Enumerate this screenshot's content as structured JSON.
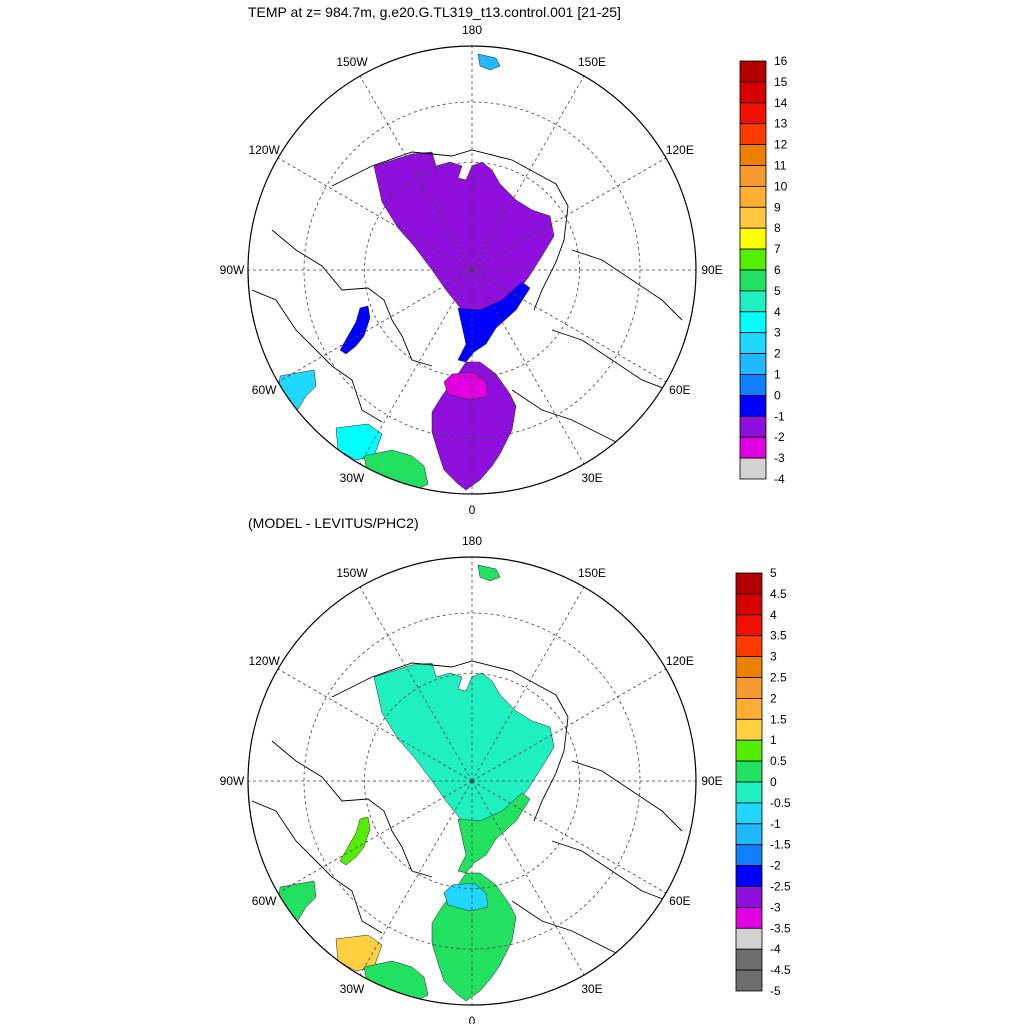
{
  "panels": [
    {
      "title": "TEMP at z= 984.7m, g.e20.G.TL319_t13.control.001 [21-25]",
      "longitude_labels": [
        "180",
        "150E",
        "120E",
        "90E",
        "60E",
        "30E",
        "0",
        "30W",
        "60W",
        "90W",
        "120W",
        "150W"
      ],
      "colorbar": {
        "labels": [
          "16",
          "15",
          "14",
          "13",
          "12",
          "11",
          "10",
          "9",
          "8",
          "7",
          "6",
          "5",
          "4",
          "3",
          "2",
          "1",
          "0",
          "-1",
          "-2",
          "-3",
          "-4"
        ],
        "colors": [
          "#b40000",
          "#d70000",
          "#f01000",
          "#ff3a00",
          "#ee8000",
          "#f59a30",
          "#ffae35",
          "#ffc640",
          "#ffff00",
          "#55ee00",
          "#22e060",
          "#20f0c0",
          "#00ffff",
          "#20d8ff",
          "#20b8ff",
          "#1080ff",
          "#0000ff",
          "#8f10dd",
          "#e000e0",
          "#d2d2d2",
          "#6e6e6e"
        ]
      },
      "fields": [
        {
          "name": "arctic-basin",
          "color": "#8f10dd"
        },
        {
          "name": "fram-strait",
          "color": "#0000ff"
        },
        {
          "name": "nordic-seas",
          "color": "#8f10dd"
        },
        {
          "name": "norwegian-core",
          "color": "#e000e0"
        },
        {
          "name": "baffin-bay",
          "color": "#0000ff"
        },
        {
          "name": "labrador-sea",
          "color": "#20d8ff"
        },
        {
          "name": "irminger-sea",
          "color": "#00ffff"
        },
        {
          "name": "north-atlantic",
          "color": "#22e060"
        },
        {
          "name": "bering-sea",
          "color": "#20b8ff"
        }
      ]
    },
    {
      "title": "(MODEL - LEVITUS/PHC2)",
      "longitude_labels": [
        "180",
        "150E",
        "120E",
        "90E",
        "60E",
        "30E",
        "0",
        "30W",
        "60W",
        "90W",
        "120W",
        "150W"
      ],
      "colorbar": {
        "labels": [
          "5",
          "4.5",
          "4",
          "3.5",
          "3",
          "2.5",
          "2",
          "1.5",
          "1",
          "0.5",
          "0",
          "-0.5",
          "-1",
          "-1.5",
          "-2",
          "-2.5",
          "-3",
          "-3.5",
          "-4",
          "-4.5",
          "-5"
        ],
        "colors": [
          "#b40000",
          "#d70000",
          "#f01000",
          "#ff3a00",
          "#ee8000",
          "#f59a30",
          "#ffae35",
          "#ffd040",
          "#55ee00",
          "#22e060",
          "#20f0c0",
          "#20d8ff",
          "#20b8ff",
          "#1080ff",
          "#0000ff",
          "#8f10dd",
          "#e000e0",
          "#d2d2d2",
          "#6e6e6e",
          "#6e6e6e"
        ]
      },
      "fields": [
        {
          "name": "arctic-basin",
          "color": "#20f0c0"
        },
        {
          "name": "fram-strait",
          "color": "#22e060"
        },
        {
          "name": "nordic-seas",
          "color": "#22e060"
        },
        {
          "name": "norwegian-core",
          "color": "#20d8ff"
        },
        {
          "name": "baffin-bay",
          "color": "#55ee00"
        },
        {
          "name": "labrador-sea",
          "color": "#22e060"
        },
        {
          "name": "irminger-sea",
          "color": "#ffd040"
        },
        {
          "name": "north-atlantic",
          "color": "#22e060"
        },
        {
          "name": "bering-sea",
          "color": "#22e060"
        }
      ]
    }
  ]
}
